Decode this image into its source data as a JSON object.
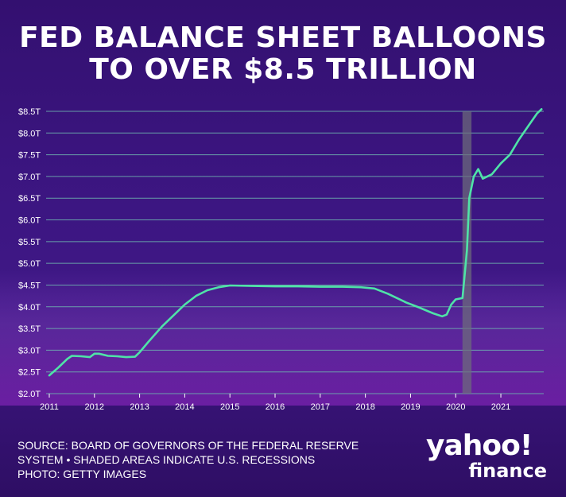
{
  "title_line1": "FED BALANCE SHEET BALLOONS",
  "title_line2": "TO OVER $8.5 TRILLION",
  "footer": {
    "line1": "SOURCE: BOARD OF GOVERNORS OF THE FEDERAL RESERVE",
    "line2": "SYSTEM • SHADED AREAS INDICATE U.S. RECESSIONS",
    "line3": "PHOTO: GETTY IMAGES"
  },
  "brand": {
    "main": "yahoo!",
    "sub": "finance"
  },
  "colors": {
    "background": "#3a1a7a",
    "line": "#4fe3a8",
    "grid": "#6fb7b0",
    "recession": "#6e6e7a",
    "text": "#ffffff"
  },
  "chart_data": {
    "type": "line",
    "xlim": [
      2011.0,
      2021.95
    ],
    "ylim": [
      2.0,
      8.6
    ],
    "yticks": [
      2.0,
      2.5,
      3.0,
      3.5,
      4.0,
      4.5,
      5.0,
      5.5,
      6.0,
      6.5,
      7.0,
      7.5,
      8.0,
      8.5
    ],
    "ytick_labels": [
      "$2.0T",
      "$2.5T",
      "$3.0T",
      "$3.5T",
      "$4.0T",
      "$4.5T",
      "$5.0T",
      "$5.5T",
      "$6.0T",
      "$6.5T",
      "$7.0T",
      "$7.5T",
      "$8.0T",
      "$8.5T"
    ],
    "xticks": [
      2011,
      2012,
      2013,
      2014,
      2015,
      2016,
      2017,
      2018,
      2019,
      2020,
      2021
    ],
    "xtick_labels": [
      "2011",
      "2012",
      "2013",
      "2014",
      "2015",
      "2016",
      "2017",
      "2018",
      "2019",
      "2020",
      "2021"
    ],
    "grid": true,
    "recession": [
      2020.15,
      2020.35
    ],
    "x": [
      2011.0,
      2011.2,
      2011.4,
      2011.5,
      2011.7,
      2011.9,
      2012.0,
      2012.1,
      2012.3,
      2012.5,
      2012.7,
      2012.9,
      2013.0,
      2013.2,
      2013.5,
      2013.75,
      2014.0,
      2014.25,
      2014.5,
      2014.75,
      2015.0,
      2015.5,
      2016.0,
      2016.5,
      2017.0,
      2017.5,
      2017.9,
      2018.2,
      2018.5,
      2018.9,
      2019.2,
      2019.5,
      2019.7,
      2019.8,
      2019.9,
      2020.0,
      2020.15,
      2020.25,
      2020.3,
      2020.4,
      2020.5,
      2020.6,
      2020.8,
      2021.0,
      2021.2,
      2021.4,
      2021.6,
      2021.8,
      2021.9
    ],
    "values": [
      2.42,
      2.6,
      2.8,
      2.87,
      2.86,
      2.84,
      2.92,
      2.92,
      2.87,
      2.86,
      2.84,
      2.85,
      2.95,
      3.2,
      3.55,
      3.8,
      4.05,
      4.25,
      4.38,
      4.45,
      4.49,
      4.48,
      4.47,
      4.47,
      4.46,
      4.46,
      4.45,
      4.42,
      4.3,
      4.1,
      3.98,
      3.85,
      3.78,
      3.82,
      4.05,
      4.17,
      4.2,
      5.3,
      6.5,
      7.0,
      7.17,
      6.95,
      7.05,
      7.3,
      7.5,
      7.85,
      8.15,
      8.45,
      8.55
    ]
  }
}
